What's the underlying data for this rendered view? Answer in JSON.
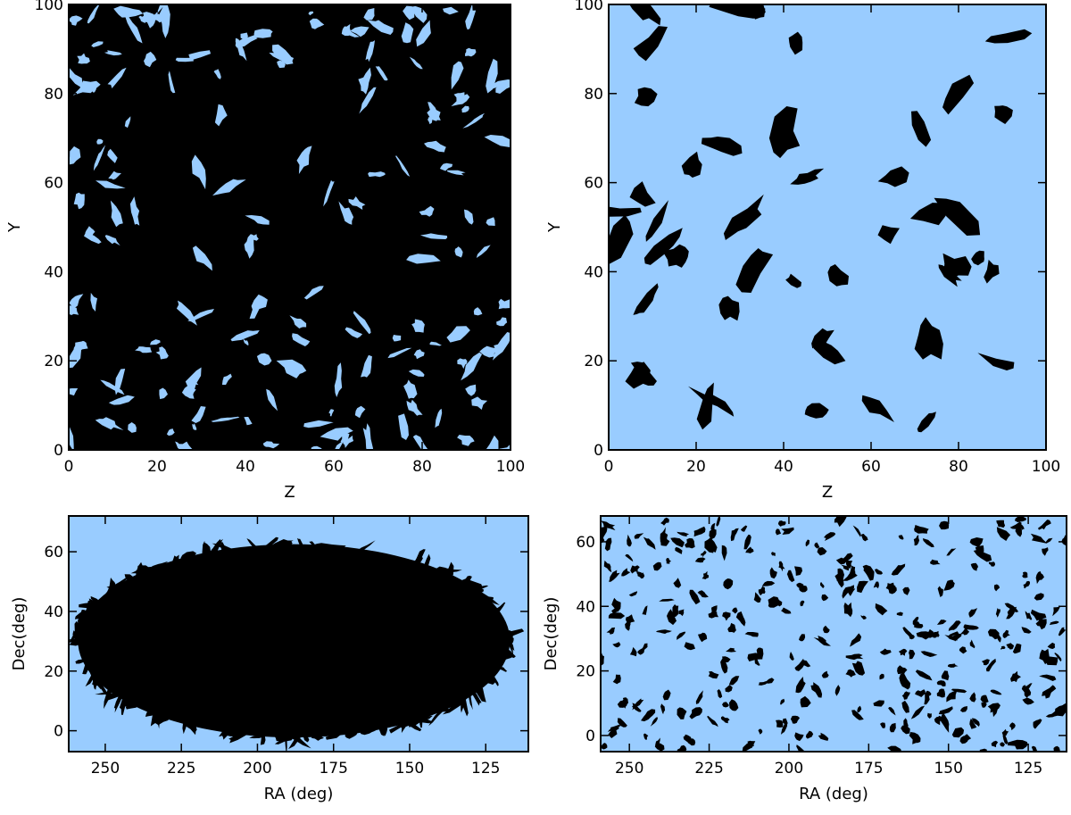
{
  "chart_data": [
    {
      "type": "image",
      "xlabel": "Z",
      "ylabel": "Y",
      "xlim": [
        0,
        100
      ],
      "ylim": [
        0,
        100
      ],
      "xticks": [
        0,
        20,
        40,
        60,
        80,
        100
      ],
      "yticks": [
        0,
        20,
        40,
        60,
        80,
        100
      ],
      "background_color": "#99ccff",
      "mask_color": "#000000",
      "tick_direction": "in"
    },
    {
      "type": "image",
      "xlabel": "Z",
      "ylabel": "Y",
      "xlim": [
        0,
        100
      ],
      "ylim": [
        0,
        100
      ],
      "xticks": [
        0,
        20,
        40,
        60,
        80,
        100
      ],
      "yticks": [
        0,
        20,
        40,
        60,
        80,
        100
      ],
      "background_color": "#99ccff",
      "mask_color": "#000000",
      "tick_direction": "in"
    },
    {
      "type": "image",
      "xlabel": "RA (deg)",
      "ylabel": "Dec(deg)",
      "xlim": [
        262,
        111
      ],
      "ylim": [
        -7,
        72
      ],
      "xticks": [
        250,
        225,
        200,
        175,
        150,
        125
      ],
      "yticks": [
        0,
        20,
        40,
        60
      ],
      "background_color": "#99ccff",
      "mask_color": "#000000",
      "tick_direction": "in"
    },
    {
      "type": "image",
      "xlabel": "RA (deg)",
      "ylabel": "Dec(deg)",
      "xlim": [
        259,
        113
      ],
      "ylim": [
        -5,
        68
      ],
      "xticks": [
        250,
        225,
        200,
        175,
        150,
        125
      ],
      "yticks": [
        0,
        20,
        40,
        60
      ],
      "background_color": "#99ccff",
      "mask_color": "#000000",
      "tick_direction": "in"
    }
  ]
}
